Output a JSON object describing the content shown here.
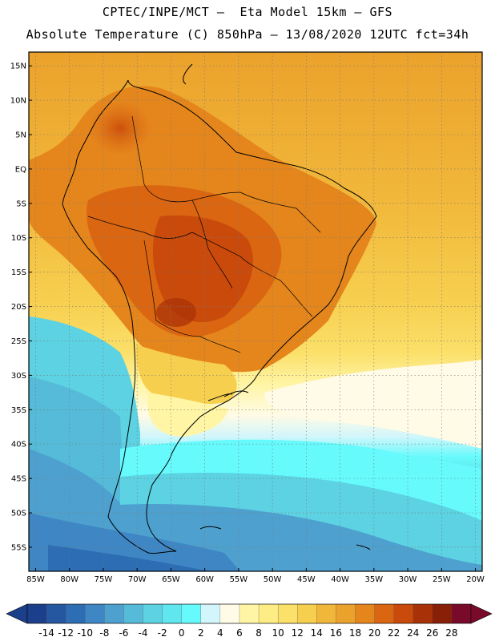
{
  "title_line1": "CPTEC/INPE/MCT –  Eta Model 15km – GFS",
  "title_line2": "Absolute Temperature (C) 850hPa – 13/08/2020 12UTC fct=34h",
  "map": {
    "lon_range": [
      -86,
      -19
    ],
    "lat_range": [
      -58.5,
      17
    ],
    "lat_labels": [
      "15N",
      "10N",
      "5N",
      "EQ",
      "5S",
      "10S",
      "15S",
      "20S",
      "25S",
      "30S",
      "35S",
      "40S",
      "45S",
      "50S",
      "55S"
    ],
    "lat_values": [
      15,
      10,
      5,
      0,
      -5,
      -10,
      -15,
      -20,
      -25,
      -30,
      -35,
      -40,
      -45,
      -50,
      -55
    ],
    "lon_labels": [
      "85W",
      "80W",
      "75W",
      "70W",
      "65W",
      "60W",
      "55W",
      "50W",
      "45W",
      "40W",
      "35W",
      "30W",
      "25W",
      "20W"
    ],
    "lon_values": [
      -85,
      -80,
      -75,
      -70,
      -65,
      -60,
      -55,
      -50,
      -45,
      -40,
      -35,
      -30,
      -25,
      -20
    ],
    "grid": "dotted"
  },
  "colorbar": {
    "labels": [
      "-14",
      "-12",
      "-10",
      "-8",
      "-6",
      "-4",
      "-2",
      "0",
      "2",
      "4",
      "6",
      "8",
      "10",
      "12",
      "14",
      "16",
      "18",
      "20",
      "22",
      "24",
      "26",
      "28"
    ],
    "colors": [
      "#1c3f8c",
      "#2557a0",
      "#2d6db3",
      "#3f86c4",
      "#4ea1cf",
      "#55bbd9",
      "#5cd2e2",
      "#5fe6ee",
      "#66fafc",
      "#d2f6fb",
      "#fffbe6",
      "#fff5a5",
      "#fded84",
      "#fbe06a",
      "#f7cf4f",
      "#f1b73a",
      "#eba22c",
      "#e5861c",
      "#db6611",
      "#c94a0a",
      "#a83107",
      "#8a1f07",
      "#7a0a2a"
    ],
    "under_color": "#1c3f8c",
    "over_color": "#7a0a2a",
    "unit": "C"
  }
}
